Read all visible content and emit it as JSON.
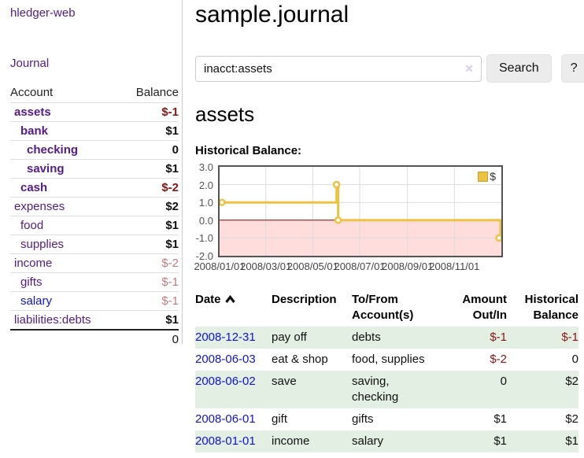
{
  "colors": {
    "purple": "#551a8b",
    "blue": "#0f12dd",
    "neg": "#8b1414",
    "negfade": "#bd7d7d",
    "stripe": "#e2efe2",
    "series": "#edc240"
  },
  "app": {
    "brand": "hledger-web",
    "nav_journal": "Journal"
  },
  "sidebar": {
    "headers": {
      "account": "Account",
      "balance": "Balance"
    },
    "accounts": [
      {
        "name": "assets",
        "depth": 1,
        "bold": true,
        "link": "purple",
        "balance": "$-1",
        "bstyle": "neg"
      },
      {
        "name": "bank",
        "depth": 2,
        "bold": true,
        "link": "purple",
        "balance": "$1",
        "bstyle": ""
      },
      {
        "name": "checking",
        "depth": 3,
        "bold": true,
        "link": "purple",
        "balance": "0",
        "bstyle": ""
      },
      {
        "name": "saving",
        "depth": 3,
        "bold": true,
        "link": "purple",
        "balance": "$1",
        "bstyle": ""
      },
      {
        "name": "cash",
        "depth": 2,
        "bold": true,
        "link": "purple",
        "balance": "$-2",
        "bstyle": "neg"
      },
      {
        "name": "expenses",
        "depth": 1,
        "bold": false,
        "link": "purple",
        "balance": "$2",
        "bstyle": ""
      },
      {
        "name": "food",
        "depth": 2,
        "bold": false,
        "link": "purple",
        "balance": "$1",
        "bstyle": ""
      },
      {
        "name": "supplies",
        "depth": 2,
        "bold": false,
        "link": "purple",
        "balance": "$1",
        "bstyle": ""
      },
      {
        "name": "income",
        "depth": 1,
        "bold": false,
        "link": "purple",
        "balance": "$-2",
        "bstyle": "faded"
      },
      {
        "name": "gifts",
        "depth": 2,
        "bold": false,
        "link": "purple",
        "balance": "$-1",
        "bstyle": "faded"
      },
      {
        "name": "salary",
        "depth": 2,
        "bold": false,
        "link": "blue",
        "balance": "$-1",
        "bstyle": "faded"
      },
      {
        "name": "liabilities:debts",
        "depth": 1,
        "bold": false,
        "link": "purple",
        "balance": "$1",
        "bstyle": ""
      }
    ],
    "total": "0"
  },
  "header": {
    "title": "sample.journal"
  },
  "search": {
    "value": "inacct:assets",
    "clear_icon": "✕",
    "button": "Search",
    "help_button": "?"
  },
  "account_page": {
    "heading": "assets",
    "chart_label": "Historical Balance:"
  },
  "chart_data": {
    "type": "line",
    "step": true,
    "title": "Historical Balance",
    "xlim": [
      "2008-01-01",
      "2009-01-01"
    ],
    "ylim": [
      -2,
      3
    ],
    "yticks": [
      3.0,
      2.0,
      1.0,
      0.0,
      -1.0,
      -2.0
    ],
    "xticks": [
      "2008/01/01",
      "2008/03/01",
      "2008/05/01",
      "2008/07/01",
      "2008/09/01",
      "2008/11/01"
    ],
    "series": [
      {
        "name": "$",
        "color": "#edc240",
        "points": [
          [
            "2008-01-01",
            1
          ],
          [
            "2008-06-01",
            2
          ],
          [
            "2008-06-03",
            0
          ],
          [
            "2008-12-31",
            -1
          ]
        ]
      }
    ],
    "legend_position": "top-right",
    "grid": true,
    "grid_color": "#dcdcdc",
    "negative_region_color": "#ffdddd",
    "zero_line_color": "#8b0000"
  },
  "register": {
    "headers": {
      "date": "Date",
      "description": "Description",
      "accounts": "To/From Account(s)",
      "amount": "Amount Out/In",
      "balance": "Historical Balance"
    },
    "rows": [
      {
        "date": "2008-12-31",
        "desc": "pay off",
        "accounts": "debts",
        "amount": "$-1",
        "amount_neg": true,
        "balance": "$-1",
        "balance_neg": true
      },
      {
        "date": "2008-06-03",
        "desc": "eat & shop",
        "accounts": "food, supplies",
        "amount": "$-2",
        "amount_neg": true,
        "balance": "0",
        "balance_neg": false
      },
      {
        "date": "2008-06-02",
        "desc": "save",
        "accounts": "saving, checking",
        "amount": "0",
        "amount_neg": false,
        "balance": "$2",
        "balance_neg": false
      },
      {
        "date": "2008-06-01",
        "desc": "gift",
        "accounts": "gifts",
        "amount": "$1",
        "amount_neg": false,
        "balance": "$2",
        "balance_neg": false
      },
      {
        "date": "2008-01-01",
        "desc": "income",
        "accounts": "salary",
        "amount": "$1",
        "amount_neg": false,
        "balance": "$1",
        "balance_neg": false
      }
    ]
  }
}
